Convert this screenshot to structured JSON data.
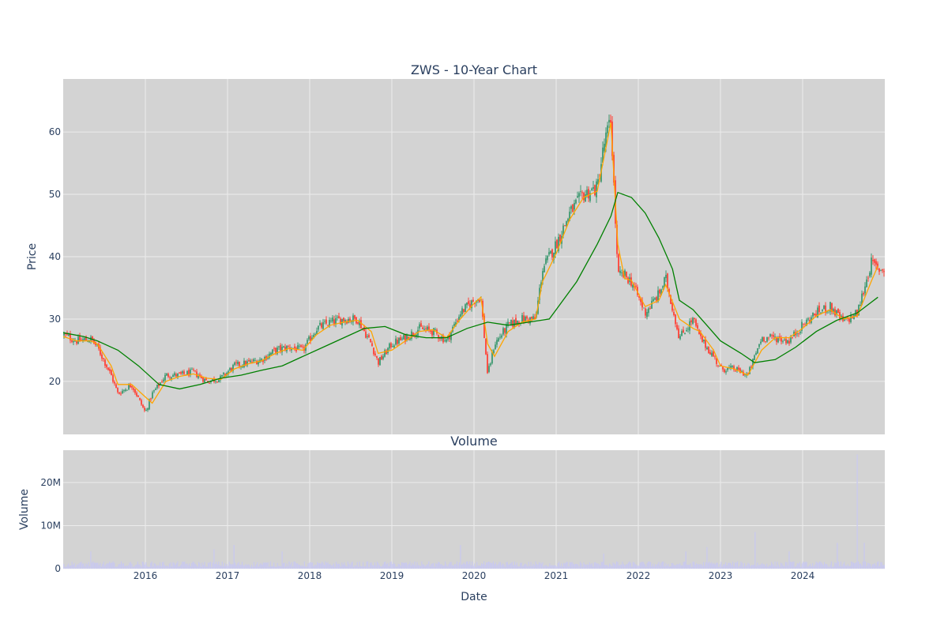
{
  "figure": {
    "title": "ZWS - 10-Year Chart",
    "subplot_title": "Volume",
    "xlabel": "Date",
    "colors": {
      "plot_bg": "#d3d3d3",
      "grid": "#ececec",
      "text": "#2a3f5f",
      "candle_up": "#3d9970",
      "candle_down": "#ff4136",
      "ma_short": "#ffa500",
      "ma_long": "#008000",
      "volume": "#c8c8f0"
    }
  },
  "chart_data": [
    {
      "type": "candlestick",
      "ylabel": "Price",
      "x_ticks": [
        "2016",
        "2017",
        "2018",
        "2019",
        "2020",
        "2021",
        "2022",
        "2023",
        "2024"
      ],
      "x_range": [
        "2015-01-01",
        "2025-01-01"
      ],
      "y_ticks": [
        20,
        30,
        40,
        50,
        60
      ],
      "ylim": [
        11.5,
        68.5
      ],
      "grid": true,
      "series": [
        {
          "kind": "close",
          "x": [
            "2015-01",
            "2015-03",
            "2015-05",
            "2015-06",
            "2015-08",
            "2015-09",
            "2015-11",
            "2016-01",
            "2016-02",
            "2016-04",
            "2016-06",
            "2016-08",
            "2016-10",
            "2016-12",
            "2017-02",
            "2017-04",
            "2017-06",
            "2017-08",
            "2017-10",
            "2017-12",
            "2018-02",
            "2018-04",
            "2018-06",
            "2018-08",
            "2018-10",
            "2018-11",
            "2019-01",
            "2019-03",
            "2019-05",
            "2019-07",
            "2019-09",
            "2019-11",
            "2020-01",
            "2020-02",
            "2020-03",
            "2020-04",
            "2020-06",
            "2020-08",
            "2020-10",
            "2020-11",
            "2021-01",
            "2021-03",
            "2021-05",
            "2021-07",
            "2021-08",
            "2021-09",
            "2021-10",
            "2021-11",
            "2021-12",
            "2022-02",
            "2022-04",
            "2022-05",
            "2022-07",
            "2022-09",
            "2022-10",
            "2022-12",
            "2023-01",
            "2023-03",
            "2023-05",
            "2023-07",
            "2023-09",
            "2023-11",
            "2024-01",
            "2024-03",
            "2024-05",
            "2024-07",
            "2024-09",
            "2024-11",
            "2024-12"
          ],
          "y": [
            27.5,
            26.5,
            26.8,
            25.5,
            21.0,
            18.0,
            19.5,
            15.0,
            18.0,
            21.0,
            21.0,
            21.5,
            20.0,
            20.5,
            22.5,
            23.0,
            23.5,
            25.0,
            25.5,
            25.0,
            28.5,
            29.5,
            30.0,
            30.0,
            26.0,
            23.0,
            26.0,
            27.0,
            28.5,
            28.0,
            26.5,
            31.0,
            33.0,
            33.5,
            21.0,
            26.0,
            29.0,
            30.0,
            30.0,
            38.0,
            42.0,
            47.0,
            50.0,
            51.0,
            58.0,
            62.0,
            37.0,
            37.0,
            36.0,
            31.0,
            34.0,
            36.5,
            27.0,
            30.0,
            27.0,
            24.0,
            22.0,
            22.0,
            21.0,
            27.0,
            27.0,
            26.5,
            29.0,
            31.0,
            32.0,
            29.5,
            31.0,
            39.0,
            38.0
          ]
        },
        {
          "name": "",
          "kind": "ma_short",
          "x": [
            "2015-01",
            "2015-03",
            "2015-05",
            "2015-06",
            "2015-08",
            "2015-09",
            "2015-11",
            "2016-01",
            "2016-02",
            "2016-04",
            "2016-06",
            "2016-08",
            "2016-10",
            "2016-12",
            "2017-02",
            "2017-04",
            "2017-06",
            "2017-08",
            "2017-10",
            "2017-12",
            "2018-02",
            "2018-04",
            "2018-06",
            "2018-08",
            "2018-10",
            "2018-11",
            "2019-01",
            "2019-03",
            "2019-05",
            "2019-07",
            "2019-09",
            "2019-11",
            "2020-01",
            "2020-02",
            "2020-03",
            "2020-04",
            "2020-06",
            "2020-08",
            "2020-10",
            "2020-11",
            "2021-01",
            "2021-03",
            "2021-05",
            "2021-07",
            "2021-08",
            "2021-09",
            "2021-10",
            "2021-11",
            "2021-12",
            "2022-02",
            "2022-04",
            "2022-05",
            "2022-07",
            "2022-09",
            "2022-10",
            "2022-12",
            "2023-01",
            "2023-03",
            "2023-05",
            "2023-07",
            "2023-09",
            "2023-11",
            "2024-01",
            "2024-03",
            "2024-05",
            "2024-07",
            "2024-09",
            "2024-11",
            "2024-12"
          ],
          "y": [
            27.2,
            26.5,
            26.5,
            26.0,
            22.5,
            19.5,
            19.5,
            17.5,
            16.5,
            20.0,
            20.8,
            21.2,
            20.5,
            20.3,
            22.0,
            22.8,
            23.3,
            24.5,
            25.3,
            25.0,
            27.5,
            29.0,
            29.5,
            29.8,
            28.0,
            24.5,
            25.0,
            26.5,
            28.0,
            28.3,
            27.0,
            30.0,
            32.5,
            33.5,
            26.0,
            24.0,
            28.0,
            29.5,
            30.0,
            36.0,
            40.5,
            46.0,
            49.5,
            50.5,
            56.0,
            61.5,
            42.0,
            36.5,
            36.2,
            32.0,
            33.0,
            35.5,
            30.0,
            28.5,
            28.0,
            25.0,
            22.5,
            22.0,
            21.0,
            25.0,
            27.0,
            27.0,
            28.5,
            30.5,
            31.5,
            30.0,
            30.5,
            36.0,
            38.5
          ]
        },
        {
          "name": "",
          "kind": "ma_long",
          "x": [
            "2015-01",
            "2015-04",
            "2015-06",
            "2015-09",
            "2015-12",
            "2016-03",
            "2016-06",
            "2016-09",
            "2016-12",
            "2017-03",
            "2017-06",
            "2017-09",
            "2017-12",
            "2018-03",
            "2018-06",
            "2018-09",
            "2018-12",
            "2019-03",
            "2019-06",
            "2019-09",
            "2019-12",
            "2020-03",
            "2020-06",
            "2020-09",
            "2020-12",
            "2021-01",
            "2021-04",
            "2021-07",
            "2021-09",
            "2021-10",
            "2021-12",
            "2022-02",
            "2022-04",
            "2022-06",
            "2022-07",
            "2022-09",
            "2022-11",
            "2023-01",
            "2023-04",
            "2023-06",
            "2023-09",
            "2023-12",
            "2024-03",
            "2024-06",
            "2024-09",
            "2024-12"
          ],
          "y": [
            27.8,
            27.2,
            26.5,
            25.0,
            22.5,
            19.5,
            18.8,
            19.5,
            20.5,
            21.0,
            21.8,
            22.5,
            24.0,
            25.5,
            27.0,
            28.5,
            28.8,
            27.5,
            27.0,
            27.0,
            28.5,
            29.5,
            29.0,
            29.5,
            30.0,
            31.5,
            36.0,
            42.0,
            46.5,
            50.3,
            49.5,
            47.0,
            43.0,
            38.0,
            33.0,
            31.5,
            29.0,
            26.5,
            24.5,
            23.0,
            23.5,
            25.5,
            28.0,
            29.8,
            31.0,
            33.5
          ]
        }
      ]
    },
    {
      "type": "bar",
      "ylabel": "Volume",
      "y_ticks": [
        "0",
        "10M",
        "20M"
      ],
      "y_tick_values": [
        0,
        10000000,
        20000000
      ],
      "ylim": [
        0,
        27500000
      ],
      "grid": true,
      "note_volume_spikes": {
        "x": [
          "2015-05",
          "2016-07",
          "2016-11",
          "2017-02",
          "2017-09",
          "2019-11",
          "2021-08",
          "2022-08",
          "2022-11",
          "2023-01",
          "2023-06",
          "2023-11",
          "2024-06",
          "2024-09",
          "2024-10"
        ],
        "y": [
          4000000,
          3500000,
          4500000,
          5500000,
          4000000,
          5500000,
          3500000,
          4000000,
          5000000,
          5000000,
          8500000,
          4000000,
          6000000,
          26500000,
          6000000
        ]
      }
    }
  ]
}
